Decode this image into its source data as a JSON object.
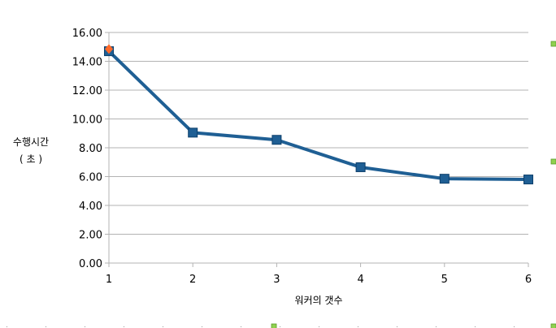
{
  "chart_data": {
    "type": "line",
    "title": "",
    "xlabel": "워커의 갯수",
    "ylabel_line1": "수행시간",
    "ylabel_line2": "( 초 )",
    "x": [
      1,
      2,
      3,
      4,
      5,
      6
    ],
    "xlim": [
      1,
      6
    ],
    "ylim": [
      0,
      16
    ],
    "yticks": [
      "0.00",
      "2.00",
      "4.00",
      "6.00",
      "8.00",
      "10.00",
      "12.00",
      "14.00",
      "16.00"
    ],
    "xticks": [
      "1",
      "2",
      "3",
      "4",
      "5",
      "6"
    ],
    "grid": true,
    "legend": "none",
    "series": [
      {
        "values": [
          14.7,
          9.05,
          8.55,
          6.65,
          5.85,
          5.8
        ],
        "color": "#1f5f94",
        "marker": "square"
      }
    ],
    "highlight_point": {
      "x": 1,
      "y": 14.85,
      "color": "#ff6a2a",
      "marker": "diamond"
    },
    "selection_handle_color": "#8fd14f"
  }
}
